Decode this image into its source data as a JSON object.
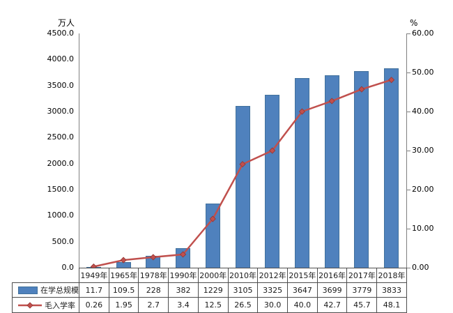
{
  "chart_data": {
    "type": "combo-bar-line",
    "title": "",
    "categories": [
      "1949年",
      "1965年",
      "1978年",
      "1990年",
      "2000年",
      "2010年",
      "2012年",
      "2015年",
      "2016年",
      "2017年",
      "2018年"
    ],
    "series": [
      {
        "name": "在学总规模",
        "type": "bar",
        "axis": "left",
        "color": "#4F81BD",
        "border_color": "#41719C",
        "values": [
          11.7,
          109.5,
          228,
          382,
          1229,
          3105,
          3325,
          3647,
          3699,
          3779,
          3833
        ],
        "display_values": [
          "11.7",
          "109.5",
          "228",
          "382",
          "1229",
          "3105",
          "3325",
          "3647",
          "3699",
          "3779",
          "3833"
        ]
      },
      {
        "name": "毛入学率",
        "type": "line",
        "axis": "right",
        "color": "#C0504D",
        "marker": "diamond",
        "marker_border_color": "#943634",
        "values": [
          0.26,
          1.95,
          2.7,
          3.4,
          12.5,
          26.5,
          30.0,
          40.0,
          42.7,
          45.7,
          48.1
        ],
        "display_values": [
          "0.26",
          "1.95",
          "2.7",
          "3.4",
          "12.5",
          "26.5",
          "30.0",
          "40.0",
          "42.7",
          "45.7",
          "48.1"
        ]
      }
    ],
    "left_axis": {
      "unit": "万人",
      "min": 0,
      "max": 4500,
      "step": 500,
      "decimals": 1
    },
    "right_axis": {
      "unit": "%",
      "min": 0,
      "max": 60,
      "step": 10,
      "decimals": 2
    },
    "grid": false,
    "legend_position": "table-left",
    "axis_color": "#808080",
    "table_border_color": "#4d4d4d"
  }
}
